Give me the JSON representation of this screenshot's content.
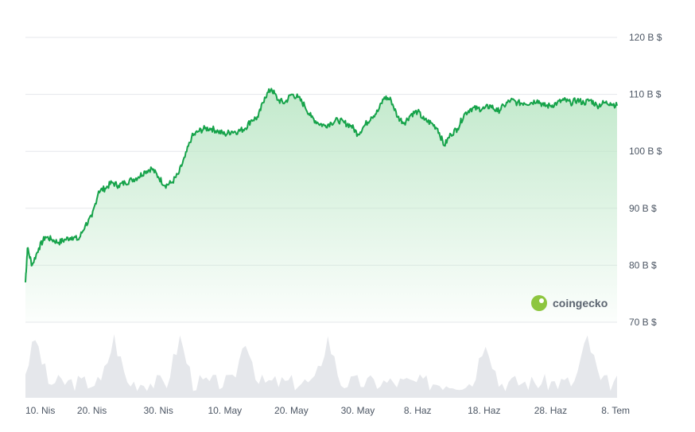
{
  "chart_data": {
    "type": "area",
    "currency_unit": "B $",
    "y_ticks": [
      {
        "value": 120,
        "label": "120 B $"
      },
      {
        "value": 110,
        "label": "110 B $"
      },
      {
        "value": 100,
        "label": "100 B $"
      },
      {
        "value": 90,
        "label": "90 B $"
      },
      {
        "value": 80,
        "label": "80 B $"
      },
      {
        "value": 70,
        "label": "70 B $"
      }
    ],
    "ylim": [
      70,
      120
    ],
    "x_ticks": [
      "10. Nis",
      "20. Nis",
      "30. Nis",
      "10. May",
      "20. May",
      "30. May",
      "8. Haz",
      "18. Haz",
      "28. Haz",
      "8. Tem"
    ],
    "x_tick_days": [
      0,
      10,
      20,
      30,
      40,
      50,
      59,
      69,
      79,
      89
    ],
    "xlim_days": [
      0,
      89
    ],
    "grid": true,
    "colors": {
      "line": "#16a34a",
      "area_top": "#bfe8c9",
      "volume": "#e5e7eb"
    },
    "series": [
      {
        "values": [
          [
            0,
            77
          ],
          [
            0.3,
            83
          ],
          [
            1,
            80
          ],
          [
            2,
            83
          ],
          [
            3,
            85
          ],
          [
            4,
            84.5
          ],
          [
            5,
            84
          ],
          [
            6,
            84.5
          ],
          [
            7,
            85
          ],
          [
            8,
            84.5
          ],
          [
            9,
            87
          ],
          [
            10,
            88.5
          ],
          [
            11,
            93
          ],
          [
            12,
            93.5
          ],
          [
            13,
            94.5
          ],
          [
            14,
            94
          ],
          [
            15,
            94.5
          ],
          [
            16,
            95
          ],
          [
            17,
            95.5
          ],
          [
            18,
            96.5
          ],
          [
            19,
            97
          ],
          [
            20,
            95.5
          ],
          [
            21,
            94
          ],
          [
            22,
            94.5
          ],
          [
            23,
            96
          ],
          [
            24,
            99
          ],
          [
            25,
            102.5
          ],
          [
            26,
            103.5
          ],
          [
            27,
            104
          ],
          [
            28,
            104
          ],
          [
            29,
            103.5
          ],
          [
            30,
            103
          ],
          [
            31,
            103.5
          ],
          [
            32,
            103.5
          ],
          [
            33,
            104
          ],
          [
            34,
            105.5
          ],
          [
            35,
            106
          ],
          [
            36,
            109.5
          ],
          [
            37,
            111
          ],
          [
            38,
            109
          ],
          [
            39,
            108.5
          ],
          [
            40,
            110
          ],
          [
            41,
            109.5
          ],
          [
            42,
            108
          ],
          [
            43,
            106
          ],
          [
            44,
            105
          ],
          [
            45,
            104.5
          ],
          [
            46,
            105
          ],
          [
            47,
            105.5
          ],
          [
            48,
            105
          ],
          [
            49,
            104.5
          ],
          [
            50,
            103
          ],
          [
            51,
            104.5
          ],
          [
            52,
            106
          ],
          [
            53,
            107
          ],
          [
            54,
            109.5
          ],
          [
            55,
            109
          ],
          [
            56,
            106
          ],
          [
            57,
            105
          ],
          [
            58,
            106.5
          ],
          [
            59,
            107
          ],
          [
            60,
            105.5
          ],
          [
            61,
            105
          ],
          [
            62,
            104
          ],
          [
            63,
            101
          ],
          [
            64,
            103
          ],
          [
            65,
            104
          ],
          [
            66,
            106.5
          ],
          [
            67,
            107.5
          ],
          [
            68,
            107.5
          ],
          [
            69,
            107.5
          ],
          [
            70,
            108
          ],
          [
            71,
            107
          ],
          [
            72,
            108
          ],
          [
            73,
            109
          ],
          [
            74,
            108.5
          ],
          [
            75,
            108.5
          ],
          [
            76,
            108.5
          ],
          [
            77,
            109
          ],
          [
            78,
            108
          ],
          [
            79,
            108
          ],
          [
            80,
            108.5
          ],
          [
            81,
            109
          ],
          [
            82,
            108.5
          ],
          [
            83,
            109
          ],
          [
            84,
            108.5
          ],
          [
            85,
            109
          ],
          [
            86,
            108
          ],
          [
            87,
            108.5
          ],
          [
            88,
            108.5
          ],
          [
            89,
            108
          ]
        ]
      }
    ]
  },
  "brand": {
    "name": "coingecko"
  }
}
